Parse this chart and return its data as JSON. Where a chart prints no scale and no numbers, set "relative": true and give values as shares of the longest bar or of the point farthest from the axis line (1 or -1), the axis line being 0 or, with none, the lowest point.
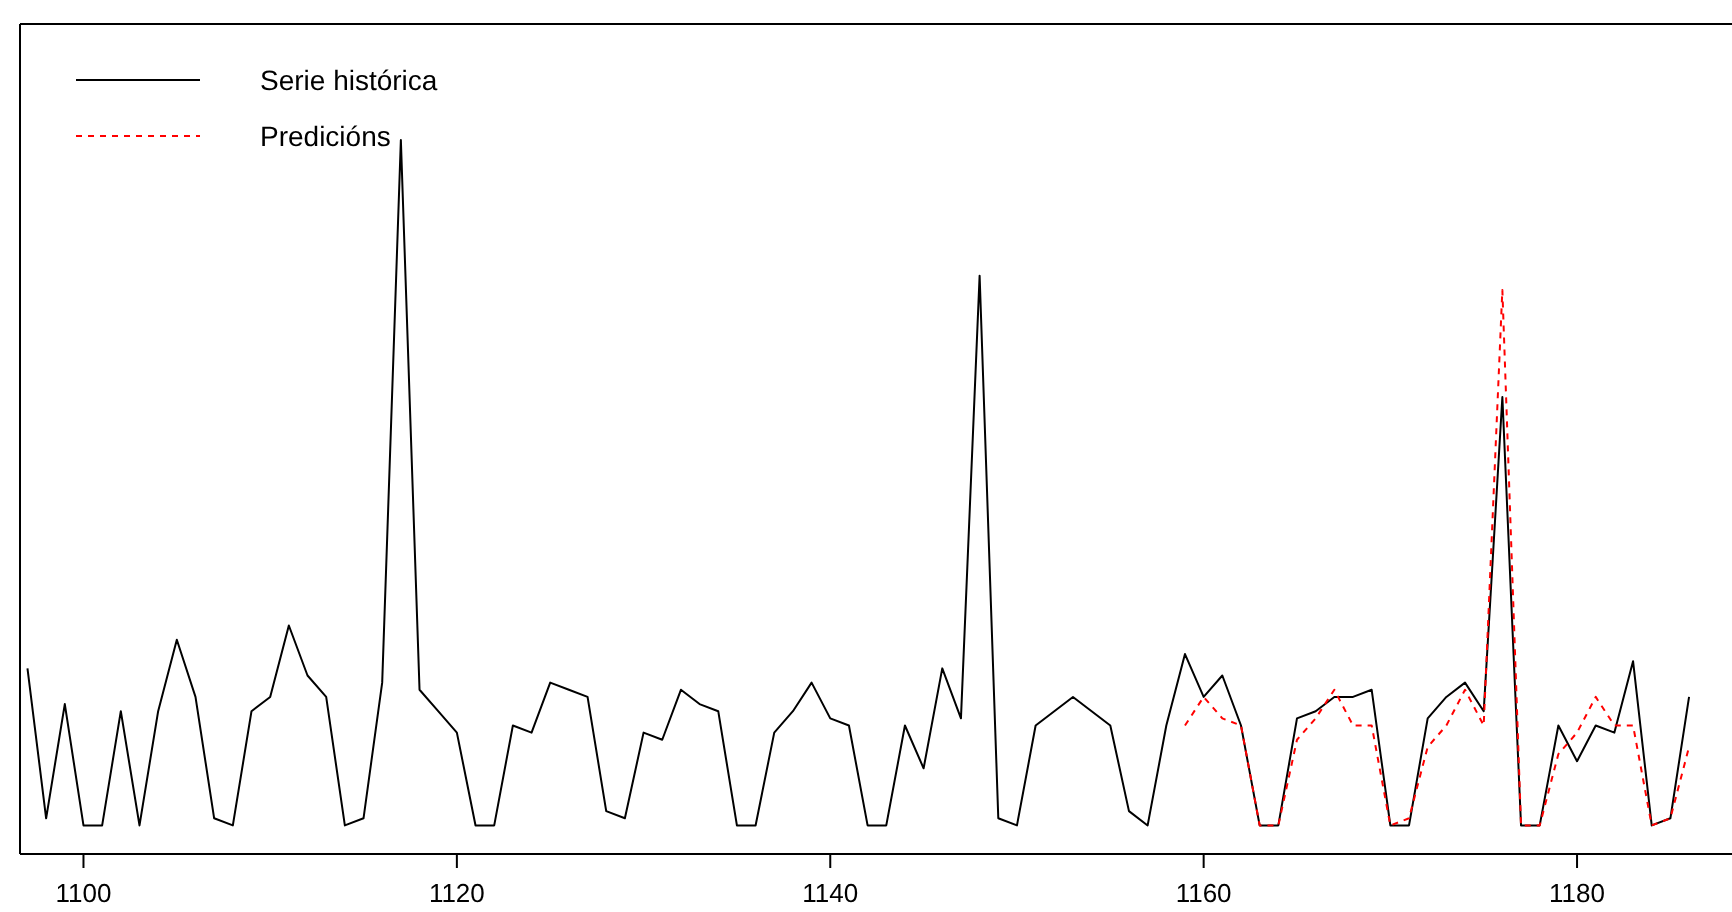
{
  "chart_data": {
    "type": "line",
    "relative": true,
    "legend": "top left",
    "xlim": [
      1096.6,
      1188.3
    ],
    "xticks": [
      1100,
      1120,
      1140,
      1160,
      1180
    ],
    "grid": false,
    "series": [
      {
        "name": "Serie histórica",
        "color": "#000000",
        "line_style": "solid",
        "x": [
          1097,
          1098,
          1099,
          1100,
          1101,
          1102,
          1103,
          1104,
          1105,
          1106,
          1107,
          1108,
          1109,
          1110,
          1111,
          1112,
          1113,
          1114,
          1115,
          1116,
          1117,
          1118,
          1119,
          1120,
          1121,
          1122,
          1123,
          1124,
          1125,
          1126,
          1127,
          1128,
          1129,
          1130,
          1131,
          1132,
          1133,
          1134,
          1135,
          1136,
          1137,
          1138,
          1139,
          1140,
          1141,
          1142,
          1143,
          1144,
          1145,
          1146,
          1147,
          1148,
          1149,
          1150,
          1151,
          1152,
          1153,
          1154,
          1155,
          1156,
          1157,
          1158,
          1159,
          1160,
          1161,
          1162,
          1163,
          1164,
          1165,
          1166,
          1167,
          1168,
          1169,
          1170,
          1171,
          1172,
          1173,
          1174,
          1175,
          1176,
          1177,
          1178,
          1179,
          1180,
          1181,
          1182,
          1183,
          1184,
          1185,
          1186
        ],
        "values": [
          0.26,
          0.05,
          0.21,
          0.04,
          0.04,
          0.2,
          0.04,
          0.2,
          0.3,
          0.22,
          0.05,
          0.04,
          0.2,
          0.22,
          0.32,
          0.25,
          0.22,
          0.04,
          0.05,
          0.24,
          1,
          0.23,
          0.2,
          0.17,
          0.04,
          0.04,
          0.18,
          0.17,
          0.24,
          0.23,
          0.22,
          0.06,
          0.05,
          0.17,
          0.16,
          0.23,
          0.21,
          0.2,
          0.04,
          0.04,
          0.17,
          0.2,
          0.24,
          0.19,
          0.18,
          0.04,
          0.04,
          0.18,
          0.12,
          0.26,
          0.19,
          0.81,
          0.05,
          0.04,
          0.18,
          0.2,
          0.22,
          0.2,
          0.18,
          0.06,
          0.04,
          0.18,
          0.28,
          0.22,
          0.25,
          0.18,
          0.04,
          0.04,
          0.19,
          0.2,
          0.22,
          0.22,
          0.23,
          0.04,
          0.04,
          0.19,
          0.22,
          0.24,
          0.2,
          0.64,
          0.04,
          0.04,
          0.18,
          0.13,
          0.18,
          0.17,
          0.27,
          0.04,
          0.05,
          0.22
        ]
      },
      {
        "name": "Predicións",
        "color": "#ff0000",
        "line_style": "dashed",
        "x": [
          1159,
          1160,
          1161,
          1162,
          1163,
          1164,
          1165,
          1166,
          1167,
          1168,
          1169,
          1170,
          1171,
          1172,
          1173,
          1174,
          1175,
          1176,
          1177,
          1178,
          1179,
          1180,
          1181,
          1182,
          1183,
          1184,
          1185,
          1186
        ],
        "values": [
          0.18,
          0.22,
          0.19,
          0.18,
          0.04,
          0.04,
          0.16,
          0.19,
          0.23,
          0.18,
          0.18,
          0.04,
          0.05,
          0.15,
          0.18,
          0.23,
          0.18,
          0.79,
          0.04,
          0.04,
          0.14,
          0.17,
          0.22,
          0.18,
          0.18,
          0.04,
          0.05,
          0.15
        ]
      }
    ]
  }
}
